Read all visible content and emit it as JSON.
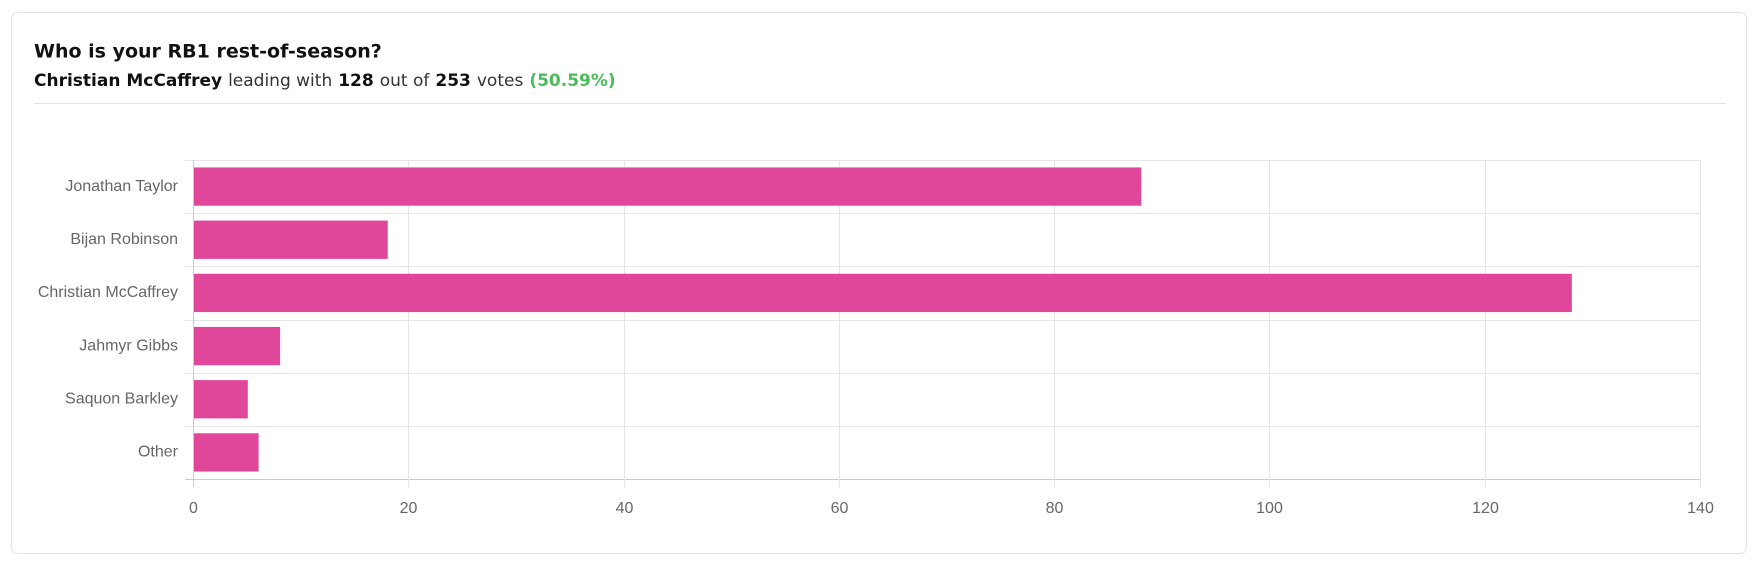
{
  "header": {
    "title": "Who is your RB1 rest-of-season?",
    "leader": "Christian McCaffrey",
    "leading_text": "leading with",
    "leader_votes": 128,
    "out_of_text": "out of",
    "total_votes": 253,
    "votes_text": "votes",
    "percent": "(50.59%)"
  },
  "chart_data": {
    "type": "bar",
    "orientation": "horizontal",
    "categories": [
      "Jonathan Taylor",
      "Bijan Robinson",
      "Christian McCaffrey",
      "Jahmyr Gibbs",
      "Saquon Barkley",
      "Other"
    ],
    "values": [
      88,
      18,
      128,
      8,
      5,
      6
    ],
    "color": "#e0479b",
    "xlim": [
      0,
      140
    ],
    "xticks": [
      0,
      20,
      40,
      60,
      80,
      100,
      120,
      140
    ],
    "grid": true
  }
}
